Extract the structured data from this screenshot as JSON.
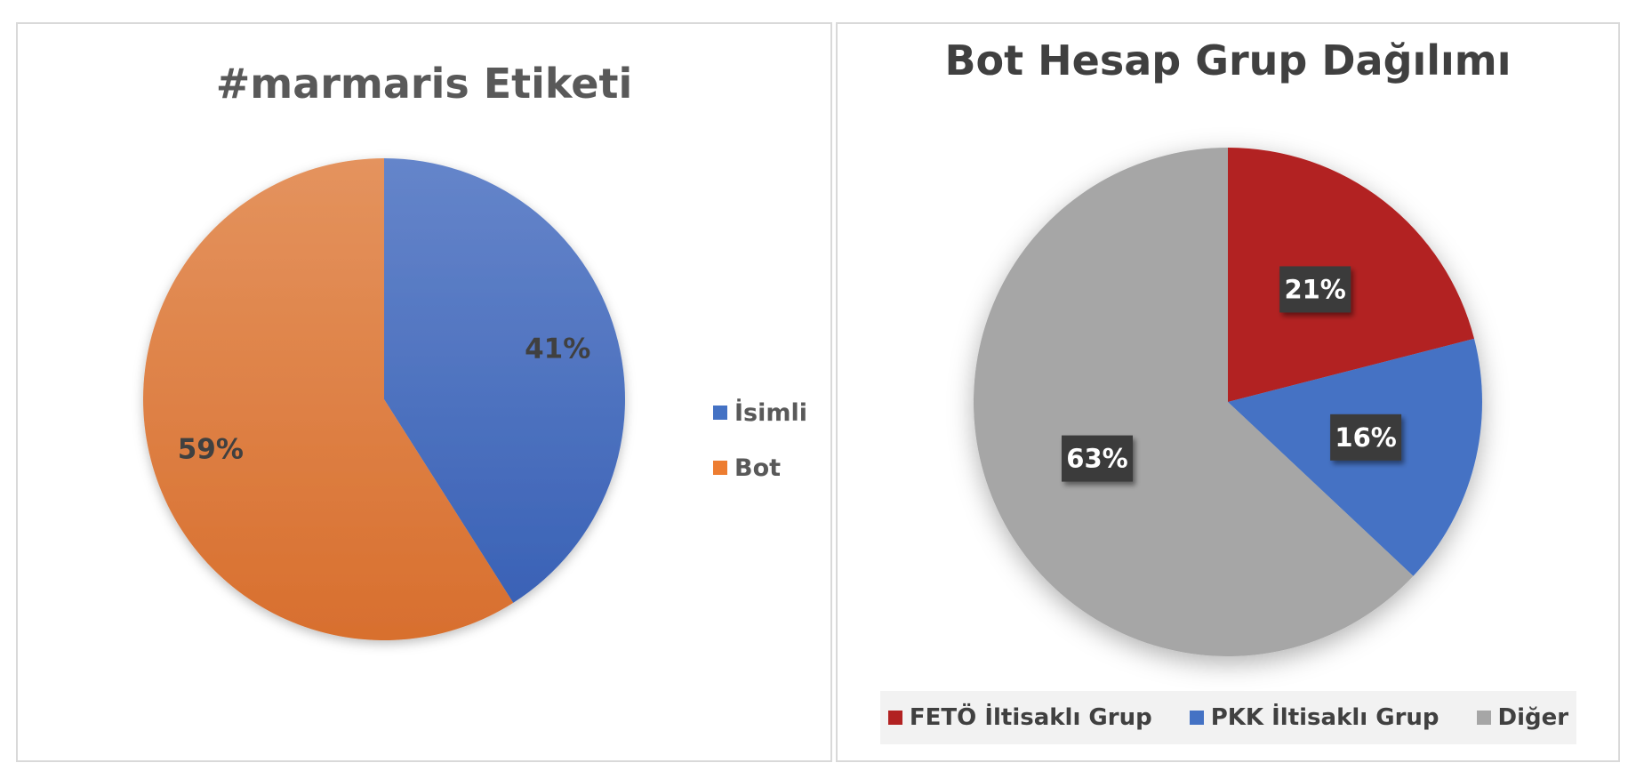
{
  "chart_data": [
    {
      "type": "pie",
      "title": "#marmaris Etiketi",
      "categories": [
        "İsimli",
        "Bot"
      ],
      "values": [
        41,
        59
      ],
      "data_labels": [
        "41%",
        "59%"
      ],
      "colors": [
        "#4472c4",
        "#ed7d31"
      ],
      "legend": "right"
    },
    {
      "type": "pie",
      "title": "Bot Hesap Grup Dağılımı",
      "categories": [
        "FETÖ İltisaklı Grup",
        "PKK İltisaklı Grup",
        "Diğer"
      ],
      "values": [
        21,
        16,
        63
      ],
      "data_labels": [
        "21%",
        "16%",
        "63%"
      ],
      "colors": [
        "#b22222",
        "#4472c4",
        "#a6a6a6"
      ],
      "legend": "bottom"
    }
  ]
}
